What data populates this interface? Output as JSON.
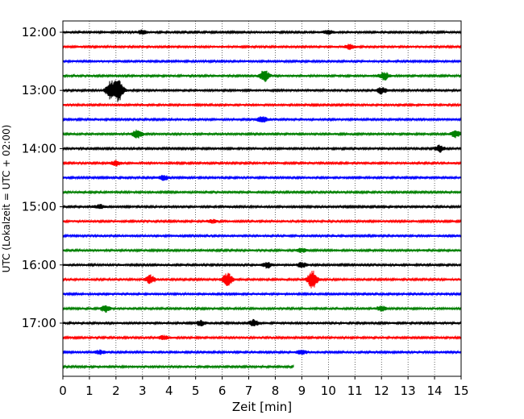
{
  "chart_data": {
    "type": "line",
    "title": "",
    "xlabel": "Zeit  [min]",
    "ylabel": "UTC (Lokalzeit = UTC + 02:00)",
    "xlim": [
      0,
      15
    ],
    "x_ticks": [
      0,
      1,
      2,
      3,
      4,
      5,
      6,
      7,
      8,
      9,
      10,
      11,
      12,
      13,
      14,
      15
    ],
    "y_tick_labels": [
      "12:00",
      "13:00",
      "14:00",
      "15:00",
      "16:00",
      "17:00"
    ],
    "line_interval_min": 15,
    "grid_x": true,
    "colors_cycle": [
      "#000000",
      "#ff0000",
      "#0000ff",
      "#008000"
    ],
    "traces": [
      {
        "start": "12:00",
        "color": "#000000",
        "end_min": 15,
        "events": [
          [
            3.0,
            2.5
          ],
          [
            10.0,
            2.5
          ]
        ]
      },
      {
        "start": "12:15",
        "color": "#ff0000",
        "end_min": 15,
        "events": [
          [
            10.8,
            3
          ]
        ]
      },
      {
        "start": "12:30",
        "color": "#0000ff",
        "end_min": 15,
        "events": []
      },
      {
        "start": "12:45",
        "color": "#008000",
        "end_min": 15,
        "events": [
          [
            7.6,
            7
          ],
          [
            12.1,
            5
          ]
        ]
      },
      {
        "start": "13:00",
        "color": "#000000",
        "end_min": 15,
        "events": [
          [
            1.8,
            11
          ],
          [
            2.1,
            14
          ],
          [
            12.0,
            4
          ]
        ]
      },
      {
        "start": "13:15",
        "color": "#ff0000",
        "end_min": 15,
        "events": []
      },
      {
        "start": "13:30",
        "color": "#0000ff",
        "end_min": 15,
        "events": [
          [
            7.5,
            4
          ]
        ]
      },
      {
        "start": "13:45",
        "color": "#008000",
        "end_min": 15,
        "events": [
          [
            2.8,
            5
          ],
          [
            14.8,
            4
          ]
        ]
      },
      {
        "start": "14:00",
        "color": "#000000",
        "end_min": 15,
        "events": [
          [
            14.2,
            4
          ]
        ]
      },
      {
        "start": "14:15",
        "color": "#ff0000",
        "end_min": 15,
        "events": [
          [
            2.0,
            3
          ]
        ]
      },
      {
        "start": "14:30",
        "color": "#0000ff",
        "end_min": 15,
        "events": [
          [
            3.8,
            3
          ]
        ]
      },
      {
        "start": "14:45",
        "color": "#008000",
        "end_min": 15,
        "events": []
      },
      {
        "start": "15:00",
        "color": "#000000",
        "end_min": 15,
        "events": [
          [
            1.4,
            2.5
          ]
        ]
      },
      {
        "start": "15:15",
        "color": "#ff0000",
        "end_min": 15,
        "events": [
          [
            5.6,
            2
          ]
        ]
      },
      {
        "start": "15:30",
        "color": "#0000ff",
        "end_min": 15,
        "events": []
      },
      {
        "start": "15:45",
        "color": "#008000",
        "end_min": 15,
        "events": [
          [
            9.0,
            2.5
          ]
        ]
      },
      {
        "start": "16:00",
        "color": "#000000",
        "end_min": 15,
        "events": [
          [
            7.7,
            3.5
          ],
          [
            9.0,
            3
          ]
        ]
      },
      {
        "start": "16:15",
        "color": "#ff0000",
        "end_min": 15,
        "events": [
          [
            3.3,
            5
          ],
          [
            6.2,
            8
          ],
          [
            9.4,
            11
          ]
        ]
      },
      {
        "start": "16:30",
        "color": "#0000ff",
        "end_min": 15,
        "events": []
      },
      {
        "start": "16:45",
        "color": "#008000",
        "end_min": 15,
        "events": [
          [
            1.6,
            4
          ],
          [
            12.0,
            3
          ]
        ]
      },
      {
        "start": "17:00",
        "color": "#000000",
        "end_min": 15,
        "events": [
          [
            5.2,
            3
          ],
          [
            7.2,
            4
          ]
        ]
      },
      {
        "start": "17:15",
        "color": "#ff0000",
        "end_min": 15,
        "events": [
          [
            3.8,
            2.5
          ]
        ]
      },
      {
        "start": "17:30",
        "color": "#0000ff",
        "end_min": 15,
        "events": [
          [
            1.4,
            2.5
          ],
          [
            9.0,
            2.5
          ]
        ]
      },
      {
        "start": "17:45",
        "color": "#008000",
        "end_min": 8.7,
        "events": []
      }
    ]
  }
}
